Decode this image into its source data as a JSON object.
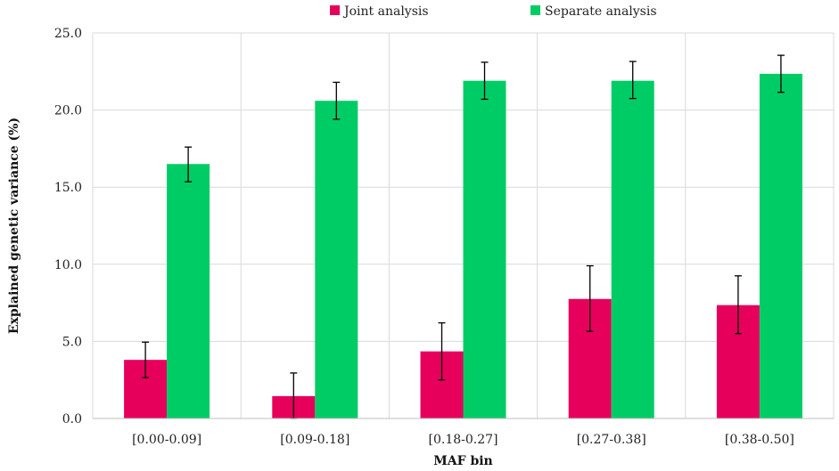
{
  "chart_data": {
    "type": "bar",
    "title": "",
    "xlabel": "MAF bin",
    "ylabel": "Explained genetic variance (%)",
    "ylim": [
      0,
      25
    ],
    "yticks": [
      "0.0",
      "5.0",
      "10.0",
      "15.0",
      "20.0",
      "25.0"
    ],
    "ytick_values": [
      0,
      5,
      10,
      15,
      20,
      25
    ],
    "grid": true,
    "legend_position": "top",
    "categories": [
      "[0.00-0.09]",
      "[0.09-0.18]",
      "[0.18-0.27]",
      "[0.27-0.38]",
      "[0.38-0.50]"
    ],
    "series": [
      {
        "name": "Joint analysis",
        "color": "#e6005c",
        "values": [
          3.8,
          1.45,
          4.35,
          7.75,
          7.35
        ],
        "error_low": [
          2.65,
          0.0,
          2.5,
          5.65,
          5.5
        ],
        "error_high": [
          4.95,
          2.95,
          6.2,
          9.9,
          9.25
        ]
      },
      {
        "name": "Separate analysis",
        "color": "#00cc66",
        "values": [
          16.5,
          20.6,
          21.9,
          21.9,
          22.35
        ],
        "error_low": [
          15.35,
          19.4,
          20.7,
          20.75,
          21.15
        ],
        "error_high": [
          17.6,
          21.8,
          23.1,
          23.15,
          23.55
        ]
      }
    ]
  }
}
